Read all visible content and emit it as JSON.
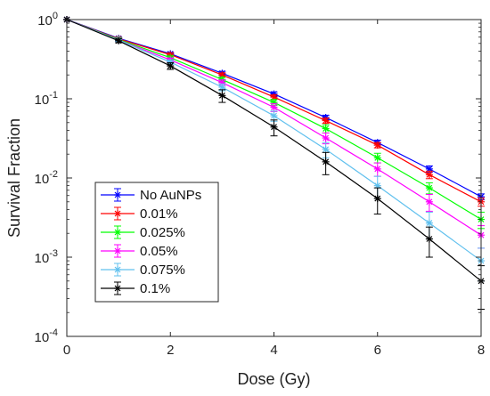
{
  "chart_data": {
    "type": "line",
    "xlabel": "Dose (Gy)",
    "ylabel": "Survival Fraction",
    "xlim": [
      0,
      8
    ],
    "ylim": [
      0.0001,
      1
    ],
    "yscale": "log",
    "grid": false,
    "legend_position": "lower-left",
    "x_ticks": [
      "0",
      "2",
      "4",
      "6",
      "8"
    ],
    "y_ticks": [
      {
        "base": "10",
        "exp": "-4"
      },
      {
        "base": "10",
        "exp": "-3"
      },
      {
        "base": "10",
        "exp": "-2"
      },
      {
        "base": "10",
        "exp": "-1"
      },
      {
        "base": "10",
        "exp": "0"
      }
    ],
    "x": [
      0,
      1,
      2,
      3,
      4,
      5,
      6,
      7,
      8
    ],
    "series": [
      {
        "name": "No AuNPs",
        "color": "#0000ff",
        "marker": "asterisk",
        "values": [
          1,
          0.58,
          0.37,
          0.21,
          0.115,
          0.058,
          0.028,
          0.013,
          0.0058
        ],
        "errors": [
          0,
          0.02,
          0.015,
          0.012,
          0.007,
          0.004,
          0.002,
          0.0012,
          0.0005
        ]
      },
      {
        "name": "0.01%",
        "color": "#ff0000",
        "marker": "asterisk",
        "values": [
          1,
          0.57,
          0.36,
          0.2,
          0.105,
          0.053,
          0.026,
          0.011,
          0.005
        ],
        "errors": [
          0,
          0.02,
          0.015,
          0.012,
          0.007,
          0.004,
          0.002,
          0.0012,
          0.0006
        ]
      },
      {
        "name": "0.025%",
        "color": "#00ff00",
        "marker": "asterisk",
        "values": [
          1,
          0.56,
          0.33,
          0.175,
          0.09,
          0.042,
          0.018,
          0.0075,
          0.003
        ],
        "errors": [
          0,
          0.02,
          0.015,
          0.012,
          0.008,
          0.005,
          0.0025,
          0.0012,
          0.0007
        ]
      },
      {
        "name": "0.05%",
        "color": "#ff00ff",
        "marker": "asterisk",
        "values": [
          1,
          0.55,
          0.31,
          0.16,
          0.078,
          0.032,
          0.013,
          0.005,
          0.0019
        ],
        "errors": [
          0,
          0.02,
          0.015,
          0.013,
          0.009,
          0.005,
          0.0025,
          0.0012,
          0.0006
        ]
      },
      {
        "name": "0.075%",
        "color": "#60c0ee",
        "marker": "asterisk",
        "values": [
          1,
          0.55,
          0.29,
          0.14,
          0.061,
          0.023,
          0.008,
          0.0027,
          0.0009
        ],
        "errors": [
          0,
          0.02,
          0.016,
          0.014,
          0.009,
          0.005,
          0.0025,
          0.001,
          0.0004
        ]
      },
      {
        "name": "0.1%",
        "color": "#000000",
        "marker": "asterisk",
        "values": [
          1,
          0.54,
          0.26,
          0.11,
          0.044,
          0.016,
          0.0055,
          0.0017,
          0.0005
        ],
        "errors": [
          0,
          0.03,
          0.025,
          0.02,
          0.01,
          0.005,
          0.002,
          0.0007,
          0.00028
        ]
      }
    ]
  }
}
